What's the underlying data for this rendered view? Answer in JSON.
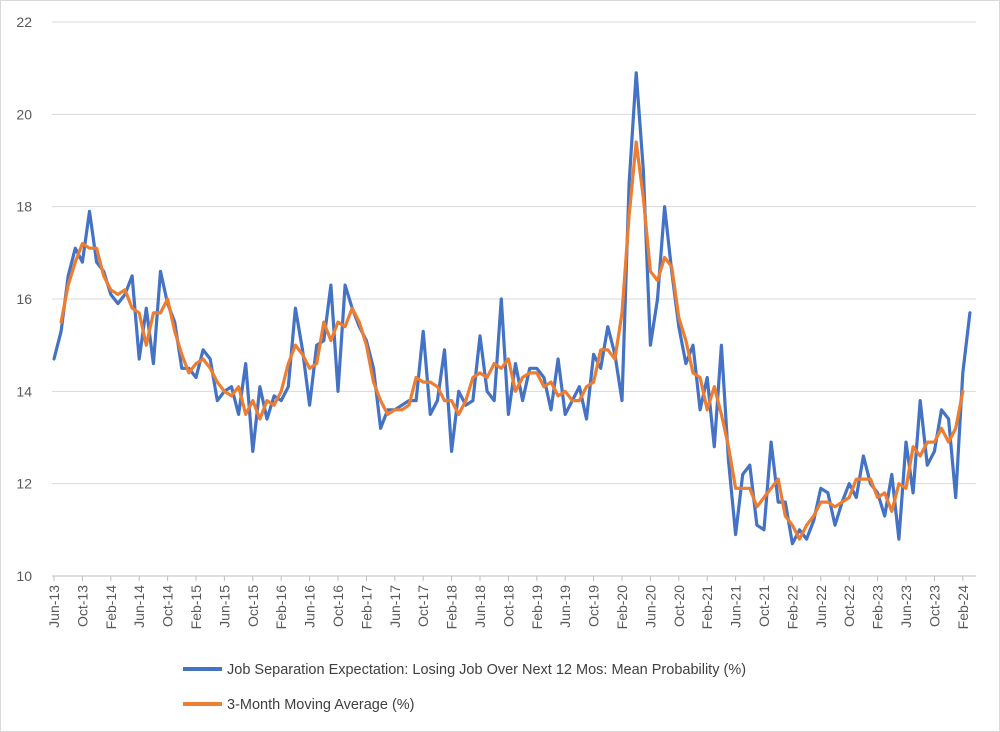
{
  "chart_data": {
    "type": "line",
    "title": "",
    "xlabel": "",
    "ylabel": "",
    "ylim": [
      10,
      22
    ],
    "y_ticks": [
      "10",
      "12",
      "14",
      "16",
      "18",
      "20",
      "22"
    ],
    "x_start": "Jun-13",
    "x_ticks": [
      {
        "label": "Jun-13",
        "index": 0
      },
      {
        "label": "Oct-13",
        "index": 4
      },
      {
        "label": "Feb-14",
        "index": 8
      },
      {
        "label": "Jun-14",
        "index": 12
      },
      {
        "label": "Oct-14",
        "index": 16
      },
      {
        "label": "Feb-15",
        "index": 20
      },
      {
        "label": "Jun-15",
        "index": 24
      },
      {
        "label": "Oct-15",
        "index": 28
      },
      {
        "label": "Feb-16",
        "index": 32
      },
      {
        "label": "Jun-16",
        "index": 36
      },
      {
        "label": "Oct-16",
        "index": 40
      },
      {
        "label": "Feb-17",
        "index": 44
      },
      {
        "label": "Jun-17",
        "index": 48
      },
      {
        "label": "Oct-17",
        "index": 52
      },
      {
        "label": "Feb-18",
        "index": 56
      },
      {
        "label": "Jun-18",
        "index": 60
      },
      {
        "label": "Oct-18",
        "index": 64
      },
      {
        "label": "Feb-19",
        "index": 68
      },
      {
        "label": "Jun-19",
        "index": 72
      },
      {
        "label": "Oct-19",
        "index": 76
      },
      {
        "label": "Feb-20",
        "index": 80
      },
      {
        "label": "Jun-20",
        "index": 84
      },
      {
        "label": "Oct-20",
        "index": 88
      },
      {
        "label": "Feb-21",
        "index": 92
      },
      {
        "label": "Jun-21",
        "index": 96
      },
      {
        "label": "Oct-21",
        "index": 100
      },
      {
        "label": "Feb-22",
        "index": 104
      },
      {
        "label": "Jun-22",
        "index": 108
      },
      {
        "label": "Oct-22",
        "index": 112
      },
      {
        "label": "Feb-23",
        "index": 116
      },
      {
        "label": "Jun-23",
        "index": 120
      },
      {
        "label": "Oct-23",
        "index": 124
      },
      {
        "label": "Feb-24",
        "index": 128
      }
    ],
    "legend_position": "bottom",
    "series": [
      {
        "name": "Job Separation Expectation: Losing Job Over Next 12 Mos: Mean Probability (%)",
        "color": "#4472C4",
        "values": [
          14.7,
          15.3,
          16.5,
          17.1,
          16.8,
          17.9,
          16.8,
          16.6,
          16.1,
          15.9,
          16.1,
          16.5,
          14.7,
          15.8,
          14.6,
          16.6,
          15.9,
          15.5,
          14.5,
          14.5,
          14.3,
          14.9,
          14.7,
          13.8,
          14.0,
          14.1,
          13.5,
          14.6,
          12.7,
          14.1,
          13.4,
          13.9,
          13.8,
          14.1,
          15.8,
          14.9,
          13.7,
          15.0,
          15.1,
          16.3,
          14.0,
          16.3,
          15.8,
          15.4,
          15.1,
          14.5,
          13.2,
          13.6,
          13.6,
          13.7,
          13.8,
          13.8,
          15.3,
          13.5,
          13.8,
          14.9,
          12.7,
          14.0,
          13.7,
          13.8,
          15.2,
          14.0,
          13.8,
          16.0,
          13.5,
          14.6,
          13.8,
          14.5,
          14.5,
          14.3,
          13.6,
          14.7,
          13.5,
          13.8,
          14.1,
          13.4,
          14.8,
          14.5,
          15.4,
          14.8,
          13.8,
          18.5,
          20.9,
          18.8,
          15.0,
          16.0,
          18.0,
          16.6,
          15.4,
          14.6,
          15.0,
          13.6,
          14.3,
          12.8,
          15.0,
          12.5,
          10.9,
          12.2,
          12.4,
          11.1,
          11.0,
          12.9,
          11.6,
          11.6,
          10.7,
          11.0,
          10.8,
          11.2,
          11.9,
          11.8,
          11.1,
          11.6,
          12.0,
          11.7,
          12.6,
          12.0,
          11.8,
          11.3,
          12.2,
          10.8,
          12.9,
          11.8,
          13.8,
          12.4,
          12.7,
          13.6,
          13.4,
          11.7,
          14.4,
          15.7
        ]
      },
      {
        "name": "3-Month Moving Average (%)",
        "color": "#ED7D31",
        "start_index": 1,
        "values": [
          15.5,
          16.3,
          16.8,
          17.2,
          17.1,
          17.1,
          16.5,
          16.2,
          16.1,
          16.2,
          15.8,
          15.7,
          15.0,
          15.7,
          15.7,
          16.0,
          15.3,
          14.8,
          14.4,
          14.6,
          14.7,
          14.5,
          14.2,
          14.0,
          13.9,
          14.1,
          13.5,
          13.8,
          13.4,
          13.8,
          13.7,
          14.0,
          14.6,
          15.0,
          14.8,
          14.5,
          14.6,
          15.5,
          15.1,
          15.5,
          15.4,
          15.8,
          15.5,
          15.0,
          14.2,
          13.8,
          13.5,
          13.6,
          13.6,
          13.7,
          14.3,
          14.2,
          14.2,
          14.1,
          13.8,
          13.8,
          13.5,
          13.8,
          14.3,
          14.4,
          14.3,
          14.6,
          14.5,
          14.7,
          14.0,
          14.3,
          14.4,
          14.4,
          14.1,
          14.2,
          13.9,
          14.0,
          13.8,
          13.8,
          14.1,
          14.2,
          14.9,
          14.9,
          14.7,
          15.7,
          17.8,
          19.4,
          18.2,
          16.6,
          16.4,
          16.9,
          16.7,
          15.6,
          15.1,
          14.4,
          14.3,
          13.6,
          14.1,
          13.5,
          12.8,
          11.9,
          11.9,
          11.9,
          11.5,
          11.7,
          11.9,
          12.1,
          11.3,
          11.1,
          10.8,
          11.1,
          11.3,
          11.6,
          11.6,
          11.5,
          11.6,
          11.7,
          12.1,
          12.1,
          12.1,
          11.7,
          11.8,
          11.4,
          12.0,
          11.9,
          12.8,
          12.6,
          12.9,
          12.9,
          13.2,
          12.9,
          13.2,
          14.0
        ]
      }
    ]
  }
}
